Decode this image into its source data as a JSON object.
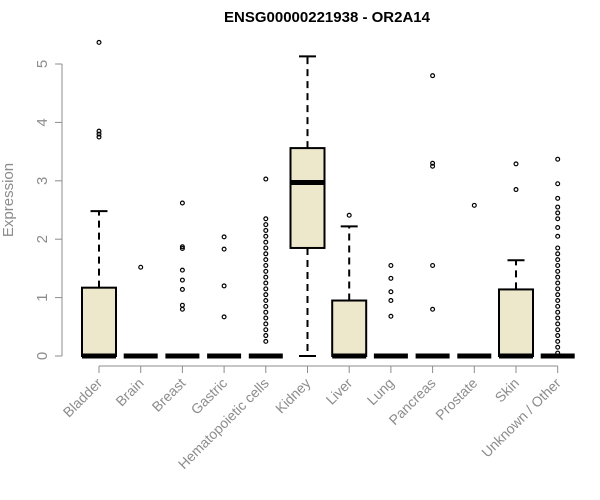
{
  "chart_data": {
    "type": "boxplot",
    "title": "ENSG00000221938 - OR2A14",
    "ylabel": "Expression",
    "xlabel": "",
    "ylim": [
      0,
      5.5
    ],
    "yticks": [
      0,
      1,
      2,
      3,
      4,
      5
    ],
    "grid": false,
    "box_fill": "#ede7cb",
    "box_stroke": "#000000",
    "categories": [
      "Bladder",
      "Brain",
      "Breast",
      "Gastric",
      "Hematopoietic cells",
      "Kidney",
      "Liver",
      "Lung",
      "Pancreas",
      "Prostate",
      "Skin",
      "Unknown / Other"
    ],
    "boxes": [
      {
        "q1": 0,
        "median": 0,
        "q3": 1.17,
        "whisker_low": 0,
        "whisker_high": 2.48,
        "outliers": [
          3.75,
          3.8,
          3.85,
          5.37
        ]
      },
      {
        "q1": 0,
        "median": 0,
        "q3": 0,
        "whisker_low": 0,
        "whisker_high": 0,
        "outliers": [
          1.52
        ]
      },
      {
        "q1": 0,
        "median": 0,
        "q3": 0,
        "whisker_low": 0,
        "whisker_high": 0,
        "outliers": [
          0.8,
          0.87,
          1.14,
          1.3,
          1.47,
          1.84,
          1.87,
          2.62
        ]
      },
      {
        "q1": 0,
        "median": 0,
        "q3": 0,
        "whisker_low": 0,
        "whisker_high": 0,
        "outliers": [
          0.67,
          1.2,
          1.83,
          2.04
        ]
      },
      {
        "q1": 0,
        "median": 0,
        "q3": 0,
        "whisker_low": 0,
        "whisker_high": 0,
        "outliers": [
          0.25,
          0.35,
          0.45,
          0.55,
          0.65,
          0.75,
          0.85,
          0.95,
          1.05,
          1.15,
          1.25,
          1.35,
          1.45,
          1.55,
          1.65,
          1.75,
          1.85,
          1.95,
          2.05,
          2.15,
          2.25,
          2.35,
          3.03
        ]
      },
      {
        "q1": 1.85,
        "median": 2.97,
        "q3": 3.56,
        "whisker_low": 0,
        "whisker_high": 5.13,
        "outliers": []
      },
      {
        "q1": 0,
        "median": 0,
        "q3": 0.95,
        "whisker_low": 0,
        "whisker_high": 2.22,
        "outliers": [
          2.41
        ]
      },
      {
        "q1": 0,
        "median": 0,
        "q3": 0,
        "whisker_low": 0,
        "whisker_high": 0,
        "outliers": [
          0.68,
          0.95,
          1.1,
          1.33,
          1.55
        ]
      },
      {
        "q1": 0,
        "median": 0,
        "q3": 0,
        "whisker_low": 0,
        "whisker_high": 0,
        "outliers": [
          0.8,
          1.55,
          3.25,
          3.3,
          4.8
        ]
      },
      {
        "q1": 0,
        "median": 0,
        "q3": 0,
        "whisker_low": 0,
        "whisker_high": 0,
        "outliers": [
          2.58
        ]
      },
      {
        "q1": 0,
        "median": 0,
        "q3": 1.14,
        "whisker_low": 0,
        "whisker_high": 1.64,
        "outliers": [
          2.85,
          3.29
        ]
      },
      {
        "q1": 0,
        "median": 0,
        "q3": 0,
        "whisker_low": 0,
        "whisker_high": 0,
        "outliers": [
          0.05,
          0.15,
          0.25,
          0.35,
          0.45,
          0.55,
          0.65,
          0.75,
          0.85,
          0.95,
          1.05,
          1.15,
          1.25,
          1.35,
          1.45,
          1.55,
          1.65,
          1.75,
          1.85,
          2.05,
          2.2,
          2.35,
          2.45,
          2.55,
          2.7,
          2.95,
          3.37
        ]
      }
    ]
  }
}
